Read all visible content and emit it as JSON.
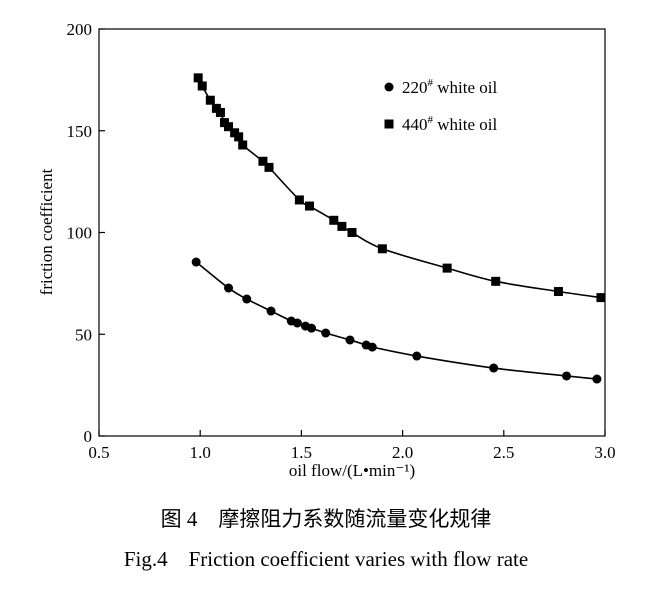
{
  "chart_data": {
    "type": "scatter",
    "xlabel": "oil flow/(L•min⁻¹)",
    "ylabel": "friction coefficient",
    "xlim": [
      0.5,
      3.0
    ],
    "ylim": [
      0,
      200
    ],
    "xticks": [
      "0.5",
      "1.0",
      "1.5",
      "2.0",
      "2.5",
      "3.0"
    ],
    "yticks": [
      "0",
      "50",
      "100",
      "150",
      "200"
    ],
    "grid": false,
    "legend_position": "top-right",
    "series": [
      {
        "name": "220# white oil",
        "legend_main": "220",
        "legend_sup": "#",
        "legend_rest": " white oil",
        "marker": "circle",
        "fit_line": true,
        "x": [
          0.98,
          1.14,
          1.23,
          1.35,
          1.45,
          1.48,
          1.52,
          1.55,
          1.62,
          1.74,
          1.82,
          1.85,
          2.07,
          2.45,
          2.81,
          2.96
        ],
        "y": [
          85.5,
          72.7,
          67.3,
          61.4,
          56.5,
          55.5,
          54,
          53,
          50.6,
          47.2,
          44.7,
          43.7,
          39.3,
          33.4,
          29.5,
          28
        ]
      },
      {
        "name": "440# white oil",
        "legend_main": "440",
        "legend_sup": "#",
        "legend_rest": " white oil",
        "marker": "square",
        "fit_line": true,
        "x": [
          0.99,
          1.01,
          1.05,
          1.08,
          1.1,
          1.12,
          1.14,
          1.17,
          1.19,
          1.21,
          1.31,
          1.34,
          1.49,
          1.54,
          1.66,
          1.7,
          1.75,
          1.9,
          2.22,
          2.46,
          2.77,
          2.98
        ],
        "y": [
          176,
          172,
          165,
          161,
          159,
          154,
          152,
          149,
          147,
          143,
          135,
          132,
          116,
          113,
          106,
          103,
          100,
          92,
          82.5,
          76,
          71,
          68
        ]
      }
    ]
  },
  "caption": {
    "cn": "图 4　摩擦阻力系数随流量变化规律",
    "en": "Fig.4　Friction coefficient varies with flow rate"
  }
}
